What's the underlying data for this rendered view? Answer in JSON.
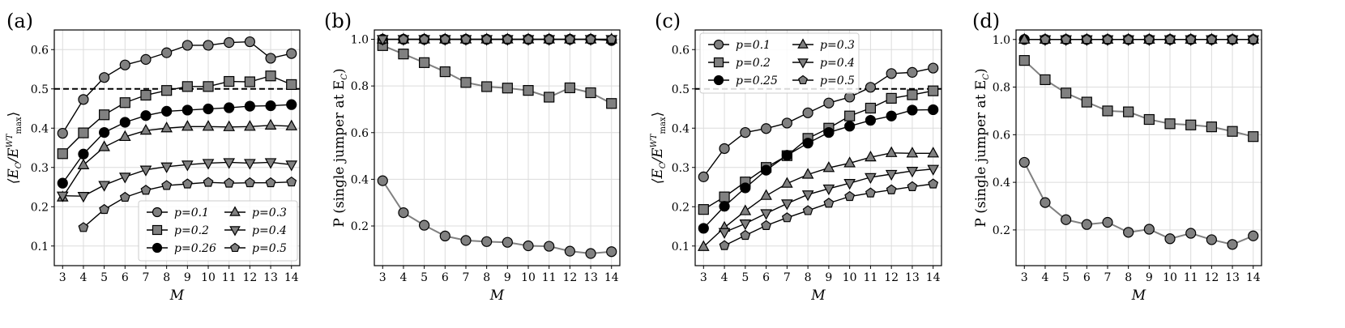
{
  "figure": {
    "panels": [
      {
        "id": "a",
        "label": "(a)",
        "xlabel": "M",
        "ylabel_main": "⟨E",
        "ylabel_sub": "C",
        "ylabel_mid": "/E",
        "ylabel_sup": "WT",
        "ylabel_sub2": "max",
        "ylabel_end": "⟩"
      },
      {
        "id": "b",
        "label": "(b)",
        "xlabel": "M",
        "ylabel_main": "P (single jumper at E",
        "ylabel_sub": "C",
        "ylabel_end": ")"
      },
      {
        "id": "c",
        "label": "(c)",
        "xlabel": "M",
        "ylabel_main": "⟨E",
        "ylabel_sub": "C",
        "ylabel_mid": "/E",
        "ylabel_sup": "WT",
        "ylabel_sub2": "max",
        "ylabel_end": "⟩"
      },
      {
        "id": "d",
        "label": "(d)",
        "xlabel": "M",
        "ylabel_main": "P (single jumper at E",
        "ylabel_sub": "C",
        "ylabel_end": ")"
      }
    ]
  },
  "colors": {
    "gray_fill": "#808080",
    "black_fill": "#000000",
    "line_black": "#000000",
    "line_gray": "#808080",
    "dashed": "#000000"
  },
  "chart_data": [
    {
      "id": "a",
      "type": "line",
      "xlabel": "M",
      "ylabel": "⟨E_C/E_max^WT⟩",
      "x_ticks": [
        3,
        4,
        5,
        6,
        7,
        8,
        9,
        10,
        11,
        12,
        13,
        14
      ],
      "y_ticks": [
        0.1,
        0.2,
        0.3,
        0.4,
        0.5,
        0.6
      ],
      "y_tick_labels": [
        "0.1",
        "0.2",
        "0.3",
        "0.4",
        "0.5",
        "0.6"
      ],
      "xlim": [
        2.6,
        14.4
      ],
      "ylim": [
        0.05,
        0.65
      ],
      "grid": true,
      "hline": 0.5,
      "legend": {
        "placement": "lower-right",
        "columns": 2
      },
      "series": [
        {
          "name": "p=0.1",
          "marker": "circle",
          "fill": "gray",
          "line": "black",
          "x": [
            3,
            4,
            5,
            6,
            7,
            8,
            9,
            10,
            11,
            12,
            13,
            14
          ],
          "y": [
            0.387,
            0.473,
            0.529,
            0.561,
            0.575,
            0.592,
            0.611,
            0.611,
            0.618,
            0.62,
            0.578,
            0.59
          ]
        },
        {
          "name": "p=0.2",
          "marker": "square",
          "fill": "gray",
          "line": "black",
          "x": [
            3,
            4,
            5,
            6,
            7,
            8,
            9,
            10,
            11,
            12,
            13,
            14
          ],
          "y": [
            0.335,
            0.388,
            0.434,
            0.465,
            0.484,
            0.496,
            0.506,
            0.506,
            0.519,
            0.518,
            0.533,
            0.511
          ]
        },
        {
          "name": "p=0.26",
          "marker": "circle",
          "fill": "black",
          "line": "black",
          "x": [
            3,
            4,
            5,
            6,
            7,
            8,
            9,
            10,
            11,
            12,
            13,
            14
          ],
          "y": [
            0.26,
            0.334,
            0.389,
            0.415,
            0.432,
            0.443,
            0.446,
            0.449,
            0.452,
            0.456,
            0.457,
            0.46
          ]
        },
        {
          "name": "p=0.3",
          "marker": "triangle-up",
          "fill": "gray",
          "line": "black",
          "x": [
            3,
            4,
            5,
            6,
            7,
            8,
            9,
            10,
            11,
            12,
            13,
            14
          ],
          "y": [
            0.224,
            0.306,
            0.352,
            0.378,
            0.394,
            0.4,
            0.404,
            0.404,
            0.403,
            0.404,
            0.407,
            0.405
          ]
        },
        {
          "name": "p=0.4",
          "marker": "triangle-down",
          "fill": "gray",
          "line": "black",
          "x": [
            3,
            4,
            5,
            6,
            7,
            8,
            9,
            10,
            11,
            12,
            13,
            14
          ],
          "y": [
            0.228,
            0.227,
            0.255,
            0.276,
            0.294,
            0.302,
            0.307,
            0.311,
            0.313,
            0.311,
            0.313,
            0.307
          ]
        },
        {
          "name": "p=0.5",
          "marker": "pentagon",
          "fill": "gray",
          "line": "black",
          "x": [
            4,
            5,
            6,
            7,
            8,
            9,
            10,
            11,
            12,
            13,
            14
          ],
          "y": [
            0.147,
            0.193,
            0.224,
            0.242,
            0.254,
            0.258,
            0.262,
            0.26,
            0.261,
            0.261,
            0.263
          ]
        }
      ]
    },
    {
      "id": "b",
      "type": "line",
      "xlabel": "M",
      "ylabel": "P (single jumper at E_C)",
      "x_ticks": [
        3,
        4,
        5,
        6,
        7,
        8,
        9,
        10,
        11,
        12,
        13,
        14
      ],
      "y_ticks": [
        0.2,
        0.4,
        0.6,
        0.8,
        1.0
      ],
      "y_tick_labels": [
        "0.2",
        "0.4",
        "0.6",
        "0.8",
        "1.0"
      ],
      "xlim": [
        2.6,
        14.4
      ],
      "ylim": [
        0.03,
        1.04
      ],
      "grid": true,
      "series": [
        {
          "marker": "circle",
          "fill": "gray",
          "line": "gray",
          "x": [
            3,
            4,
            5,
            6,
            7,
            8,
            9,
            10,
            11,
            12,
            13,
            14
          ],
          "y": [
            0.394,
            0.257,
            0.203,
            0.157,
            0.138,
            0.133,
            0.13,
            0.115,
            0.113,
            0.092,
            0.082,
            0.09
          ]
        },
        {
          "marker": "square",
          "fill": "gray",
          "line": "gray",
          "x": [
            3,
            4,
            5,
            6,
            7,
            8,
            9,
            10,
            11,
            12,
            13,
            14
          ],
          "y": [
            0.973,
            0.937,
            0.9,
            0.861,
            0.815,
            0.797,
            0.791,
            0.781,
            0.752,
            0.792,
            0.771,
            0.725
          ]
        },
        {
          "marker": "circle",
          "fill": "black",
          "line": "black",
          "x": [
            3,
            4,
            5,
            6,
            7,
            8,
            9,
            10,
            11,
            12,
            13,
            14
          ],
          "y": [
            1.0,
            1.0,
            1.0,
            1.0,
            1.0,
            1.0,
            1.0,
            1.0,
            1.0,
            1.0,
            1.0,
            0.995
          ]
        },
        {
          "marker": "triangle-up",
          "fill": "gray",
          "line": "black",
          "x": [
            3,
            4,
            5,
            6,
            7,
            8,
            9,
            10,
            11,
            12,
            13,
            14
          ],
          "y": [
            1.0,
            1.0,
            1.0,
            1.0,
            1.0,
            1.0,
            1.0,
            1.0,
            1.0,
            1.0,
            1.0,
            1.0
          ]
        },
        {
          "marker": "triangle-down",
          "fill": "gray",
          "line": "black",
          "x": [
            3,
            4,
            5,
            6,
            7,
            8,
            9,
            10,
            11,
            12,
            13,
            14
          ],
          "y": [
            1.0,
            1.0,
            1.0,
            1.0,
            1.0,
            1.0,
            1.0,
            1.0,
            1.0,
            1.0,
            1.0,
            1.0
          ]
        },
        {
          "marker": "pentagon",
          "fill": "gray",
          "line": "black",
          "x": [
            4,
            5,
            6,
            7,
            8,
            9,
            10,
            11,
            12,
            13,
            14
          ],
          "y": [
            1.0,
            1.0,
            1.0,
            1.0,
            1.0,
            1.0,
            1.0,
            1.0,
            1.0,
            1.0,
            1.0
          ]
        }
      ]
    },
    {
      "id": "c",
      "type": "line",
      "xlabel": "M",
      "ylabel": "⟨E_C/E_max^WT⟩",
      "x_ticks": [
        3,
        4,
        5,
        6,
        7,
        8,
        9,
        10,
        11,
        12,
        13,
        14
      ],
      "y_ticks": [
        0.1,
        0.2,
        0.3,
        0.4,
        0.5,
        0.6
      ],
      "y_tick_labels": [
        "0.1",
        "0.2",
        "0.3",
        "0.4",
        "0.5",
        "0.6"
      ],
      "xlim": [
        2.6,
        14.4
      ],
      "ylim": [
        0.05,
        0.65
      ],
      "grid": true,
      "hline": 0.5,
      "legend": {
        "placement": "top-left",
        "columns": 2
      },
      "series": [
        {
          "name": "p=0.1",
          "marker": "circle",
          "fill": "gray",
          "line": "black",
          "x": [
            3,
            4,
            5,
            6,
            7,
            8,
            9,
            10,
            11,
            12,
            13,
            14
          ],
          "y": [
            0.276,
            0.348,
            0.389,
            0.399,
            0.413,
            0.439,
            0.464,
            0.479,
            0.504,
            0.539,
            0.542,
            0.553
          ]
        },
        {
          "name": "p=0.2",
          "marker": "square",
          "fill": "gray",
          "line": "black",
          "x": [
            3,
            4,
            5,
            6,
            7,
            8,
            9,
            10,
            11,
            12,
            13,
            14
          ],
          "y": [
            0.193,
            0.225,
            0.263,
            0.3,
            0.33,
            0.374,
            0.4,
            0.431,
            0.451,
            0.476,
            0.485,
            0.495
          ]
        },
        {
          "name": "p=0.25",
          "marker": "circle",
          "fill": "black",
          "line": "black",
          "x": [
            3,
            4,
            5,
            6,
            7,
            8,
            9,
            10,
            11,
            12,
            13,
            14
          ],
          "y": [
            0.145,
            0.201,
            0.248,
            0.293,
            0.331,
            0.362,
            0.389,
            0.405,
            0.42,
            0.431,
            0.446,
            0.447
          ]
        },
        {
          "name": "p=0.3",
          "marker": "triangle-up",
          "fill": "gray",
          "line": "black",
          "x": [
            3,
            4,
            5,
            6,
            7,
            8,
            9,
            10,
            11,
            12,
            13,
            14
          ],
          "y": [
            0.098,
            0.147,
            0.189,
            0.228,
            0.259,
            0.282,
            0.299,
            0.311,
            0.326,
            0.337,
            0.336,
            0.336
          ]
        },
        {
          "name": "p=0.4",
          "marker": "triangle-down",
          "fill": "gray",
          "line": "black",
          "x": [
            4,
            5,
            6,
            7,
            8,
            9,
            10,
            11,
            12,
            13,
            14
          ],
          "y": [
            0.135,
            0.157,
            0.183,
            0.208,
            0.231,
            0.246,
            0.26,
            0.275,
            0.283,
            0.291,
            0.296
          ]
        },
        {
          "name": "p=0.5",
          "marker": "pentagon",
          "fill": "gray",
          "line": "black",
          "x": [
            4,
            5,
            6,
            7,
            8,
            9,
            10,
            11,
            12,
            13,
            14
          ],
          "y": [
            0.101,
            0.127,
            0.152,
            0.172,
            0.19,
            0.209,
            0.226,
            0.235,
            0.243,
            0.251,
            0.258
          ]
        }
      ]
    },
    {
      "id": "d",
      "type": "line",
      "xlabel": "M",
      "ylabel": "P (single jumper at E_C)",
      "x_ticks": [
        3,
        4,
        5,
        6,
        7,
        8,
        9,
        10,
        11,
        12,
        13,
        14
      ],
      "y_ticks": [
        0.2,
        0.4,
        0.6,
        0.8,
        1.0
      ],
      "y_tick_labels": [
        "0.2",
        "0.4",
        "0.6",
        "0.8",
        "1.0"
      ],
      "xlim": [
        2.6,
        14.4
      ],
      "ylim": [
        0.05,
        1.04
      ],
      "grid": true,
      "series": [
        {
          "marker": "circle",
          "fill": "gray",
          "line": "gray",
          "x": [
            3,
            4,
            5,
            6,
            7,
            8,
            9,
            10,
            11,
            12,
            13,
            14
          ],
          "y": [
            0.484,
            0.315,
            0.243,
            0.223,
            0.232,
            0.19,
            0.203,
            0.163,
            0.186,
            0.159,
            0.139,
            0.175
          ]
        },
        {
          "marker": "square",
          "fill": "gray",
          "line": "gray",
          "x": [
            3,
            4,
            5,
            6,
            7,
            8,
            9,
            10,
            11,
            12,
            13,
            14
          ],
          "y": [
            0.912,
            0.831,
            0.775,
            0.737,
            0.7,
            0.696,
            0.664,
            0.646,
            0.641,
            0.633,
            0.614,
            0.592
          ]
        },
        {
          "marker": "circle",
          "fill": "black",
          "line": "black",
          "x": [
            3,
            4,
            5,
            6,
            7,
            8,
            9,
            10,
            11,
            12,
            13,
            14
          ],
          "y": [
            1.0,
            1.0,
            1.0,
            1.0,
            1.0,
            1.0,
            1.0,
            1.0,
            1.0,
            1.0,
            1.0,
            1.0
          ]
        },
        {
          "marker": "triangle-up",
          "fill": "gray",
          "line": "black",
          "x": [
            3,
            4,
            5,
            6,
            7,
            8,
            9,
            10,
            11,
            12,
            13,
            14
          ],
          "y": [
            1.0,
            1.0,
            1.0,
            1.0,
            1.0,
            1.0,
            1.0,
            1.0,
            1.0,
            1.0,
            1.0,
            1.0
          ]
        },
        {
          "marker": "triangle-down",
          "fill": "gray",
          "line": "black",
          "x": [
            4,
            5,
            6,
            7,
            8,
            9,
            10,
            11,
            12,
            13,
            14
          ],
          "y": [
            1.0,
            1.0,
            1.0,
            1.0,
            1.0,
            1.0,
            1.0,
            1.0,
            1.0,
            1.0,
            1.0
          ]
        },
        {
          "marker": "pentagon",
          "fill": "gray",
          "line": "black",
          "x": [
            4,
            5,
            6,
            7,
            8,
            9,
            10,
            11,
            12,
            13,
            14
          ],
          "y": [
            1.0,
            1.0,
            1.0,
            1.0,
            1.0,
            1.0,
            1.0,
            1.0,
            1.0,
            1.0,
            1.0
          ]
        }
      ]
    }
  ]
}
